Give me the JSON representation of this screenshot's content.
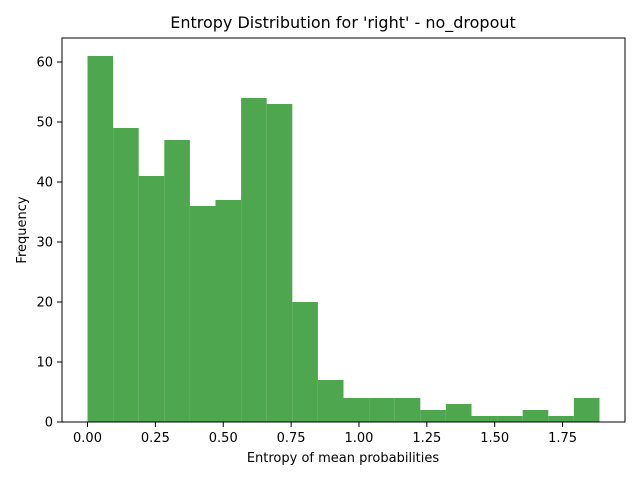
{
  "chart_data": {
    "type": "bar",
    "title": "Entropy Distribution for 'right' - no_dropout",
    "xlabel": "Entropy of mean probabilities",
    "ylabel": "Frequency",
    "bar_color": "#4ea64e",
    "xlim": [
      -0.094,
      1.98
    ],
    "ylim": [
      0,
      64
    ],
    "x_ticks": [
      "0.00",
      "0.25",
      "0.50",
      "0.75",
      "1.00",
      "1.25",
      "1.50",
      "1.75"
    ],
    "x_tick_values": [
      0,
      0.25,
      0.5,
      0.75,
      1.0,
      1.25,
      1.5,
      1.75
    ],
    "y_ticks": [
      "0",
      "10",
      "20",
      "30",
      "40",
      "50",
      "60"
    ],
    "y_tick_values": [
      0,
      10,
      20,
      30,
      40,
      50,
      60
    ],
    "bin_start": 0.0,
    "bin_end": 1.886,
    "values": [
      61,
      49,
      41,
      47,
      36,
      37,
      54,
      53,
      20,
      7,
      4,
      4,
      4,
      2,
      3,
      1,
      1,
      2,
      1,
      4
    ],
    "grid": false,
    "legend": "none"
  }
}
